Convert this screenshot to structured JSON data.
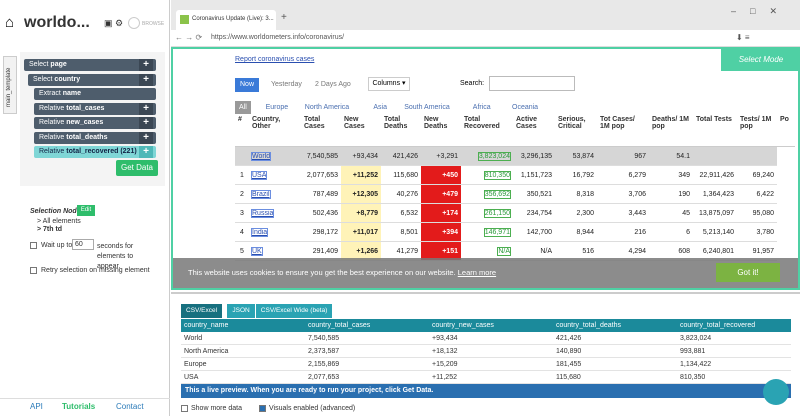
{
  "sidebar": {
    "project": "worldo...",
    "browse": "BROWSE",
    "template": "main_template",
    "commands": [
      {
        "verb": "Select",
        "target": "page"
      },
      {
        "verb": "Select",
        "target": "country"
      },
      {
        "verb": "Extract",
        "target": "name"
      },
      {
        "verb": "Relative",
        "target": "total_cases"
      },
      {
        "verb": "Relative",
        "target": "new_cases"
      },
      {
        "verb": "Relative",
        "target": "total_deaths"
      },
      {
        "verb": "Relative",
        "target": "total_recovered (221)"
      }
    ],
    "get_data": "Get Data",
    "selection_node": "Selection Node:",
    "edit": "Edit",
    "node_path": [
      "> All elements",
      "> 7th td"
    ],
    "wait_prefix": "Wait up to",
    "wait_seconds": "60",
    "wait_suffix": "seconds for elements to appear.",
    "retry": "Retry selection on missing element",
    "footer": [
      "API",
      "Tutorials",
      "Contact"
    ]
  },
  "browser": {
    "tab": "Coronavirus Update (Live): 3...",
    "url": "https://www.worldometers.info/coronavirus/",
    "page": {
      "report_link": "Report coronavirus cases",
      "select_mode": "Select Mode",
      "day_buttons": [
        "Now",
        "Yesterday",
        "2 Days Ago"
      ],
      "columns": "Columns ▾",
      "search": "Search:",
      "regions": [
        "All",
        "Europe",
        "North America",
        "Asia",
        "South America",
        "Africa",
        "Oceania"
      ],
      "table": {
        "headers": [
          "#",
          "Country, Other",
          "Total Cases",
          "New Cases",
          "Total Deaths",
          "New Deaths",
          "Total Recovered",
          "Active Cases",
          "Serious, Critical",
          "Tot Cases/ 1M pop",
          "Deaths/ 1M pop",
          "Total Tests",
          "Tests/ 1M pop",
          "Po"
        ],
        "rows": [
          [
            null,
            "World",
            "7,540,585",
            "+93,434",
            "421,426",
            "+3,291",
            "3,823,024",
            "3,296,135",
            "53,874",
            "967",
            "54.1",
            null,
            null
          ],
          [
            "1",
            "USA",
            "2,077,653",
            "+11,252",
            "115,680",
            "+450",
            "810,350",
            "1,151,723",
            "16,792",
            "6,279",
            "349",
            "22,911,426",
            "69,240"
          ],
          [
            "2",
            "Brazil",
            "787,489",
            "+12,305",
            "40,276",
            "+479",
            "356,692",
            "350,521",
            "8,318",
            "3,706",
            "190",
            "1,364,423",
            "6,422"
          ],
          [
            "3",
            "Russia",
            "502,436",
            "+8,779",
            "6,532",
            "+174",
            "261,150",
            "234,754",
            "2,300",
            "3,443",
            "45",
            "13,875,097",
            "95,080"
          ],
          [
            "4",
            "India",
            "298,172",
            "+11,017",
            "8,501",
            "+394",
            "146,971",
            "142,700",
            "8,944",
            "216",
            "6",
            "5,213,140",
            "3,780"
          ],
          [
            "5",
            "UK",
            "291,409",
            "+1,266",
            "41,279",
            "+151",
            "N/A",
            "N/A",
            "516",
            "4,294",
            "608",
            "6,240,801",
            "91,957"
          ]
        ]
      },
      "cookie_text": "This website uses cookies to ensure you get the best experience on our website.",
      "learn_more": "Learn more",
      "got_it": "Got it!"
    }
  },
  "preview": {
    "tabs": [
      "CSV/Excel",
      "JSON",
      "CSV/Excel Wide (beta)"
    ],
    "table": {
      "headers": [
        "country_name",
        "country_total_cases",
        "country_new_cases",
        "country_total_deaths",
        "country_total_recovered"
      ],
      "rows": [
        [
          "World",
          "7,540,585",
          "+93,434",
          "421,426",
          "3,823,024"
        ],
        [
          "North America",
          "2,373,587",
          "+18,132",
          "140,890",
          "993,881"
        ],
        [
          "Europe",
          "2,155,869",
          "+15,209",
          "181,455",
          "1,134,422"
        ],
        [
          "USA",
          "2,077,653",
          "+11,252",
          "115,680",
          "810,350"
        ]
      ]
    },
    "info": "This a live preview. When you are ready to run your project, click Get Data.",
    "options": [
      "Show more data",
      "Visuals enabled (advanced)"
    ]
  }
}
